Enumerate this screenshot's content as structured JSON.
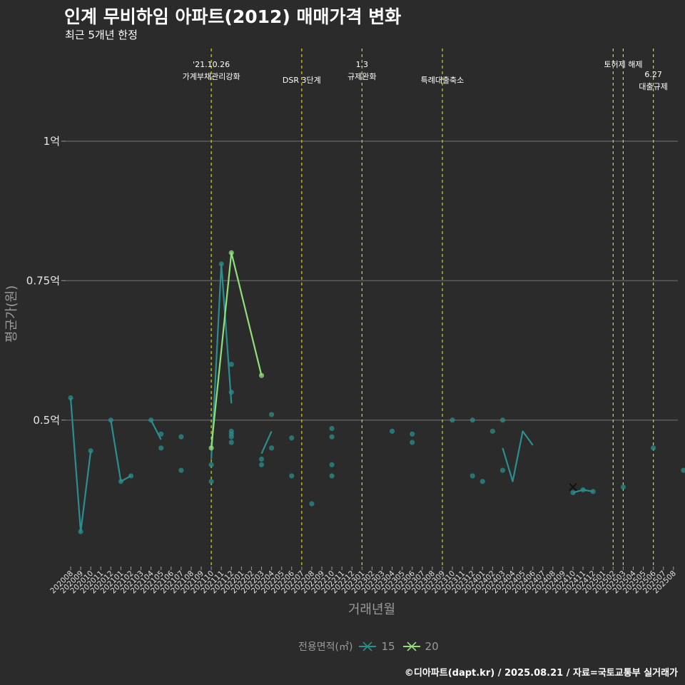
{
  "header": {
    "title": "인계 무비하임 아파트(2012) 매매가격 변화",
    "subtitle": "최근 5개년 한정"
  },
  "footer": {
    "credit": "©디아파트(dapt.kr) / 2025.08.21 / 자료=국토교통부 실거래가"
  },
  "legend": {
    "title": "전용면적(㎡)",
    "items": [
      {
        "label": "15",
        "color": "#2a8f8e"
      },
      {
        "label": "20",
        "color": "#8fe07a"
      }
    ]
  },
  "chart_data": {
    "type": "line",
    "xlabel": "거래년월",
    "ylabel": "평균가(원)",
    "ylim": [
      0.24,
      1.17
    ],
    "yticks": [
      {
        "value": 1.0,
        "label": "1억"
      },
      {
        "value": 0.75,
        "label": "0.75억"
      },
      {
        "value": 0.5,
        "label": "0.5억"
      }
    ],
    "categories": [
      "202008",
      "202009",
      "202010",
      "202011",
      "202012",
      "202101",
      "202102",
      "202103",
      "202104",
      "202105",
      "202106",
      "202107",
      "202108",
      "202109",
      "202110",
      "202111",
      "202112",
      "202201",
      "202202",
      "202203",
      "202204",
      "202205",
      "202206",
      "202207",
      "202208",
      "202209",
      "202210",
      "202211",
      "202212",
      "202301",
      "202302",
      "202303",
      "202304",
      "202305",
      "202306",
      "202307",
      "202308",
      "202309",
      "202310",
      "202311",
      "202312",
      "202401",
      "202402",
      "202403",
      "202404",
      "202405",
      "202406",
      "202407",
      "202408",
      "202409",
      "202410",
      "202411",
      "202412",
      "202501",
      "202502",
      "202503",
      "202504",
      "202505",
      "202506",
      "202507",
      "202508"
    ],
    "events": [
      {
        "pos": 14,
        "lines": [
          "'21.10.26",
          "가계부채관리강화"
        ],
        "offset": 0
      },
      {
        "pos": 23,
        "lines": [
          "DSR 3단계"
        ],
        "offset": 1
      },
      {
        "pos": 29,
        "lines": [
          "1.3",
          "규제완화"
        ],
        "offset": 0
      },
      {
        "pos": 37,
        "lines": [
          "특례대출축소"
        ],
        "offset": 1
      },
      {
        "pos": 54,
        "lines": [],
        "offset": 0
      },
      {
        "pos": 55,
        "lines": [
          "토허제 해제"
        ],
        "offset": 0
      },
      {
        "pos": 58,
        "lines": [
          "6.27",
          "대출규제"
        ],
        "offset": 1
      }
    ],
    "series": [
      {
        "name": "15",
        "color": "#2a8f8e",
        "line": [
          [
            0,
            0.54
          ],
          [
            1,
            0.3
          ],
          [
            2,
            0.445
          ],
          [
            null,
            null
          ],
          [
            4,
            0.5
          ],
          [
            5,
            0.39
          ],
          [
            6,
            0.4
          ],
          [
            null,
            null
          ],
          [
            8,
            0.5
          ],
          [
            9,
            0.465
          ],
          [
            null,
            null
          ],
          [
            14,
            0.43
          ],
          [
            15,
            0.78
          ],
          [
            16,
            0.53
          ],
          [
            null,
            null
          ],
          [
            19,
            0.44
          ],
          [
            20,
            0.48
          ],
          [
            null,
            null
          ],
          [
            43,
            0.45
          ],
          [
            44,
            0.39
          ],
          [
            45,
            0.48
          ],
          [
            46,
            0.455
          ],
          [
            null,
            null
          ],
          [
            50,
            0.37
          ],
          [
            51,
            0.375
          ],
          [
            52,
            0.372
          ]
        ],
        "points": [
          [
            0,
            0.54
          ],
          [
            1,
            0.3
          ],
          [
            2,
            0.445
          ],
          [
            4,
            0.5
          ],
          [
            5,
            0.39
          ],
          [
            6,
            0.4
          ],
          [
            8,
            0.5
          ],
          [
            9,
            0.45
          ],
          [
            9,
            0.475
          ],
          [
            11,
            0.47
          ],
          [
            11,
            0.41
          ],
          [
            14,
            0.39
          ],
          [
            14,
            0.42
          ],
          [
            15,
            0.78
          ],
          [
            16,
            0.6
          ],
          [
            16,
            0.55
          ],
          [
            16,
            0.48
          ],
          [
            16,
            0.475
          ],
          [
            16,
            0.47
          ],
          [
            16,
            0.46
          ],
          [
            19,
            0.43
          ],
          [
            19,
            0.42
          ],
          [
            20,
            0.51
          ],
          [
            20,
            0.45
          ],
          [
            22,
            0.468
          ],
          [
            22,
            0.4
          ],
          [
            24,
            0.35
          ],
          [
            26,
            0.485
          ],
          [
            26,
            0.47
          ],
          [
            26,
            0.42
          ],
          [
            26,
            0.4
          ],
          [
            32,
            0.48
          ],
          [
            34,
            0.475
          ],
          [
            34,
            0.46
          ],
          [
            38,
            0.5
          ],
          [
            40,
            0.5
          ],
          [
            40,
            0.4
          ],
          [
            41,
            0.39
          ],
          [
            42,
            0.48
          ],
          [
            43,
            0.5
          ],
          [
            43,
            0.41
          ],
          [
            50,
            0.37
          ],
          [
            51,
            0.375
          ],
          [
            52,
            0.372
          ],
          [
            55,
            0.38
          ],
          [
            58,
            0.45
          ],
          [
            61,
            0.41
          ]
        ]
      },
      {
        "name": "20",
        "color": "#8fe07a",
        "line": [
          [
            14,
            0.45
          ],
          [
            16,
            0.8
          ],
          [
            19,
            0.58
          ]
        ],
        "points": [
          [
            14,
            0.45
          ],
          [
            16,
            0.8
          ],
          [
            19,
            0.58
          ]
        ]
      }
    ],
    "annotations": [
      {
        "type": "cross",
        "x": 50,
        "y": 0.38
      }
    ]
  }
}
